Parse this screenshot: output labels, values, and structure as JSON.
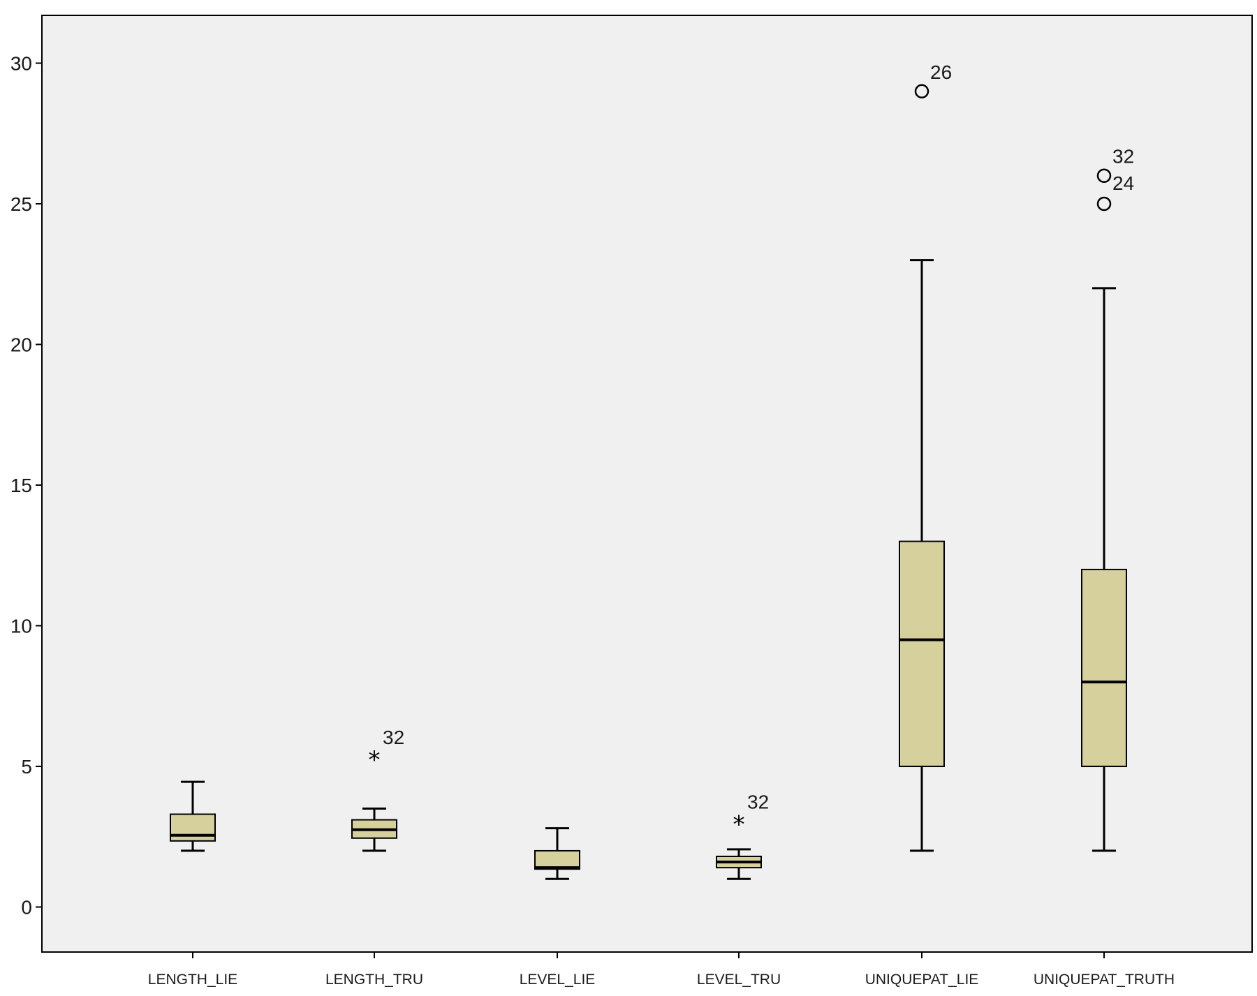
{
  "chart_data": {
    "type": "boxplot",
    "title": "",
    "xlabel": "",
    "ylabel": "",
    "ylim": [
      -1.6,
      31.7
    ],
    "yticks": [
      0,
      5,
      10,
      15,
      20,
      25,
      30
    ],
    "grid": false,
    "legend": "none",
    "colors": {
      "box_fill": "#d6d09c",
      "plot_bg": "#f0f0f0",
      "stroke": "#000000"
    },
    "categories": [
      "LENGTH_LIE",
      "LENGTH_TRU",
      "LEVEL_LIE",
      "LEVEL_TRU",
      "UNIQUEPAT_LIE",
      "UNIQUEPAT_TRUTH"
    ],
    "boxes": [
      {
        "category": "LENGTH_LIE",
        "whisker_low": 2.0,
        "q1": 2.35,
        "median": 2.55,
        "q3": 3.3,
        "whisker_high": 4.45,
        "outliers": []
      },
      {
        "category": "LENGTH_TRU",
        "whisker_low": 2.0,
        "q1": 2.45,
        "median": 2.75,
        "q3": 3.1,
        "whisker_high": 3.5,
        "outliers": [
          {
            "value": 5.4,
            "label": "32",
            "marker": "star"
          }
        ]
      },
      {
        "category": "LEVEL_LIE",
        "whisker_low": 1.0,
        "q1": 1.35,
        "median": 1.4,
        "q3": 2.0,
        "whisker_high": 2.8,
        "outliers": []
      },
      {
        "category": "LEVEL_TRU",
        "whisker_low": 1.0,
        "q1": 1.4,
        "median": 1.6,
        "q3": 1.8,
        "whisker_high": 2.05,
        "outliers": [
          {
            "value": 3.1,
            "label": "32",
            "marker": "star"
          }
        ]
      },
      {
        "category": "UNIQUEPAT_LIE",
        "whisker_low": 2.0,
        "q1": 5.0,
        "median": 9.5,
        "q3": 13.0,
        "whisker_high": 23.0,
        "outliers": [
          {
            "value": 29.0,
            "label": "26",
            "marker": "circle"
          }
        ]
      },
      {
        "category": "UNIQUEPAT_TRUTH",
        "whisker_low": 2.0,
        "q1": 5.0,
        "median": 8.0,
        "q3": 12.0,
        "whisker_high": 22.0,
        "outliers": [
          {
            "value": 26.0,
            "label": "32",
            "marker": "circle"
          },
          {
            "value": 25.0,
            "label": "24",
            "marker": "circle"
          }
        ]
      }
    ]
  }
}
